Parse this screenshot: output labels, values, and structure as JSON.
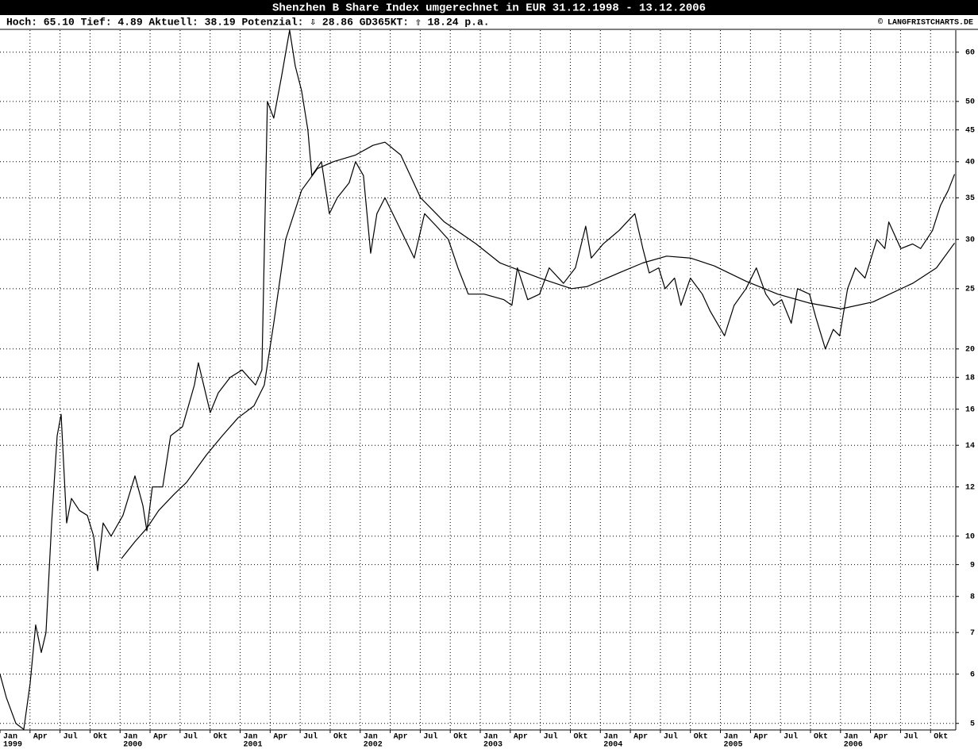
{
  "chart_data": {
    "type": "line",
    "title": "Shenzhen B Share Index umgerechnet in EUR 31.12.1998 - 13.12.2006",
    "info": "Hoch: 65.10  Tief: 4.89  Aktuell: 38.19  Potenzial: ⇩ 28.86  GD365KT: ⇧ 18.24 p.a.",
    "copyright": "© LANGFRISTCHARTS.DE",
    "log_scale": true,
    "grid": true,
    "xlim": [
      1999.0,
      2006.96
    ],
    "ylim": [
      4.88,
      65.1
    ],
    "yticks": [
      5,
      6,
      7,
      8,
      9,
      10,
      12,
      14,
      16,
      18,
      20,
      25,
      30,
      35,
      40,
      45,
      50,
      60
    ],
    "xticks": [
      {
        "value": 1999.0,
        "label": "Jan"
      },
      {
        "value": 1999.25,
        "label": "Apr"
      },
      {
        "value": 1999.5,
        "label": "Jul"
      },
      {
        "value": 1999.75,
        "label": "Okt"
      },
      {
        "value": 2000.0,
        "label": "Jan"
      },
      {
        "value": 2000.25,
        "label": "Apr"
      },
      {
        "value": 2000.5,
        "label": "Jul"
      },
      {
        "value": 2000.75,
        "label": "Okt"
      },
      {
        "value": 2001.0,
        "label": "Jan"
      },
      {
        "value": 2001.25,
        "label": "Apr"
      },
      {
        "value": 2001.5,
        "label": "Jul"
      },
      {
        "value": 2001.75,
        "label": "Okt"
      },
      {
        "value": 2002.0,
        "label": "Jan"
      },
      {
        "value": 2002.25,
        "label": "Apr"
      },
      {
        "value": 2002.5,
        "label": "Jul"
      },
      {
        "value": 2002.75,
        "label": "Okt"
      },
      {
        "value": 2003.0,
        "label": "Jan"
      },
      {
        "value": 2003.25,
        "label": "Apr"
      },
      {
        "value": 2003.5,
        "label": "Jul"
      },
      {
        "value": 2003.75,
        "label": "Okt"
      },
      {
        "value": 2004.0,
        "label": "Jan"
      },
      {
        "value": 2004.25,
        "label": "Apr"
      },
      {
        "value": 2004.5,
        "label": "Jul"
      },
      {
        "value": 2004.75,
        "label": "Okt"
      },
      {
        "value": 2005.0,
        "label": "Jan"
      },
      {
        "value": 2005.25,
        "label": "Apr"
      },
      {
        "value": 2005.5,
        "label": "Jul"
      },
      {
        "value": 2005.75,
        "label": "Okt"
      },
      {
        "value": 2006.0,
        "label": "Jan"
      },
      {
        "value": 2006.25,
        "label": "Apr"
      },
      {
        "value": 2006.5,
        "label": "Jul"
      },
      {
        "value": 2006.75,
        "label": "Okt"
      }
    ],
    "year_ticks": [
      1999,
      2000,
      2001,
      2002,
      2003,
      2004,
      2005,
      2006
    ],
    "series": [
      {
        "color": "#000000",
        "x": [
          1999.0,
          1999.053,
          1999.132,
          1999.198,
          1999.251,
          1999.297,
          1999.344,
          1999.383,
          1999.43,
          1999.476,
          1999.509,
          1999.555,
          1999.595,
          1999.661,
          1999.727,
          1999.78,
          1999.813,
          1999.859,
          1999.925,
          2000.024,
          2000.124,
          2000.19,
          2000.223,
          2000.269,
          2000.355,
          2000.421,
          2000.52,
          2000.619,
          2000.652,
          2000.751,
          2000.818,
          2000.917,
          2001.016,
          2001.128,
          2001.181,
          2001.227,
          2001.28,
          2001.346,
          2001.412,
          2001.459,
          2001.512,
          2001.564,
          2001.597,
          2001.677,
          2001.743,
          2001.809,
          2001.908,
          2001.961,
          2002.027,
          2002.087,
          2002.139,
          2002.206,
          2002.305,
          2002.45,
          2002.536,
          2002.635,
          2002.734,
          2002.814,
          2002.9,
          2003.032,
          2003.197,
          2003.263,
          2003.309,
          2003.395,
          2003.494,
          2003.574,
          2003.693,
          2003.792,
          2003.878,
          2003.924,
          2004.023,
          2004.155,
          2004.287,
          2004.354,
          2004.407,
          2004.486,
          2004.539,
          2004.618,
          2004.671,
          2004.75,
          2004.849,
          2004.915,
          2005.034,
          2005.114,
          2005.213,
          2005.299,
          2005.378,
          2005.444,
          2005.51,
          2005.59,
          2005.642,
          2005.742,
          2005.794,
          2005.874,
          2005.94,
          2005.993,
          2006.059,
          2006.125,
          2006.204,
          2006.303,
          2006.369,
          2006.402,
          2006.502,
          2006.601,
          2006.667,
          2006.766,
          2006.832,
          2006.898,
          2006.95
        ],
        "values": [
          6.0,
          5.5,
          5.0,
          4.89,
          5.8,
          7.2,
          6.5,
          7.0,
          10.5,
          14.5,
          15.7,
          10.5,
          11.5,
          11.0,
          10.8,
          10.0,
          8.8,
          10.5,
          10.0,
          10.8,
          12.5,
          11.2,
          10.2,
          12.0,
          12.0,
          14.5,
          15.0,
          17.5,
          19.0,
          15.8,
          17.0,
          18.0,
          18.5,
          17.5,
          18.5,
          50,
          47,
          55,
          65.1,
          57,
          52,
          45,
          38,
          40,
          33,
          35,
          37,
          40,
          38,
          28.5,
          33,
          35,
          32,
          28,
          33,
          31.5,
          30,
          27,
          24.5,
          24.5,
          24,
          23.5,
          27,
          24,
          24.5,
          27,
          25.5,
          27,
          31.5,
          28,
          29.5,
          31,
          33,
          29,
          26.5,
          27,
          25,
          26,
          23.5,
          26,
          24.5,
          23,
          21,
          23.5,
          25,
          27,
          24.5,
          23.5,
          24,
          22,
          25,
          24.5,
          22.5,
          20,
          21.5,
          21,
          25,
          27,
          26,
          30,
          29,
          32,
          29,
          29.5,
          29,
          31,
          34,
          36,
          38.19
        ]
      },
      {
        "color": "#000000",
        "x": [
          2000.011,
          2000.124,
          2000.223,
          2000.322,
          2000.454,
          2000.553,
          2000.718,
          2000.851,
          2000.983,
          2001.115,
          2001.201,
          2001.28,
          2001.379,
          2001.512,
          2001.644,
          2001.776,
          2001.961,
          2002.106,
          2002.206,
          2002.338,
          2002.503,
          2002.701,
          2002.966,
          2003.164,
          2003.494,
          2003.759,
          2003.891,
          2004.155,
          2004.354,
          2004.552,
          2004.75,
          2004.948,
          2005.213,
          2005.477,
          2005.742,
          2006.006,
          2006.27,
          2006.601,
          2006.799,
          2006.95
        ],
        "values": [
          9.2,
          9.8,
          10.3,
          11,
          11.7,
          12.2,
          13.5,
          14.5,
          15.5,
          16.2,
          17.5,
          22,
          30,
          36,
          39,
          40,
          41,
          42.5,
          43,
          41,
          35,
          32,
          29.5,
          27.5,
          26,
          25,
          25.2,
          26.5,
          27.5,
          28.2,
          28,
          27.2,
          25.7,
          24.5,
          23.7,
          23.2,
          23.8,
          25.5,
          27,
          29.6
        ]
      }
    ]
  }
}
